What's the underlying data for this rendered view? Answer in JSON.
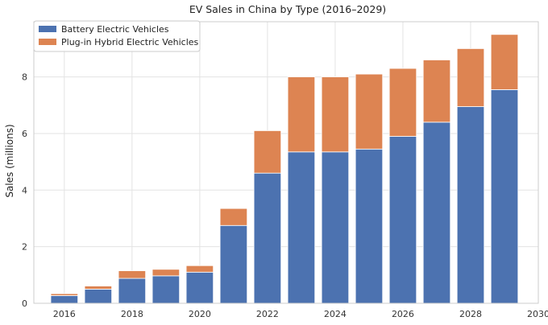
{
  "chart_data": {
    "type": "bar",
    "stacked": true,
    "title": "EV Sales in China by Type (2016–2029)",
    "xlabel": "",
    "ylabel": "Sales (millions)",
    "x": [
      2016,
      2017,
      2018,
      2019,
      2020,
      2021,
      2022,
      2023,
      2024,
      2025,
      2026,
      2027,
      2028,
      2029
    ],
    "series": [
      {
        "name": "Battery Electric Vehicles",
        "color": "#4c72b0",
        "values": [
          0.27,
          0.5,
          0.88,
          0.97,
          1.1,
          2.75,
          4.6,
          5.35,
          5.35,
          5.45,
          5.9,
          6.4,
          6.95,
          7.55
        ]
      },
      {
        "name": "Plug-in Hybrid Electric Vehicles",
        "color": "#dd8452",
        "values": [
          0.07,
          0.11,
          0.27,
          0.23,
          0.23,
          0.6,
          1.5,
          2.65,
          2.65,
          2.65,
          2.4,
          2.2,
          2.05,
          1.95
        ]
      }
    ],
    "xlim": [
      2015.1,
      2030.0
    ],
    "ylim": [
      0,
      9.95
    ],
    "xticks": [
      "2016",
      "2018",
      "2020",
      "2022",
      "2024",
      "2026",
      "2028",
      "2030"
    ],
    "yticks": [
      "0",
      "2",
      "4",
      "6",
      "8"
    ],
    "grid": true,
    "legend_position": "top-left"
  }
}
